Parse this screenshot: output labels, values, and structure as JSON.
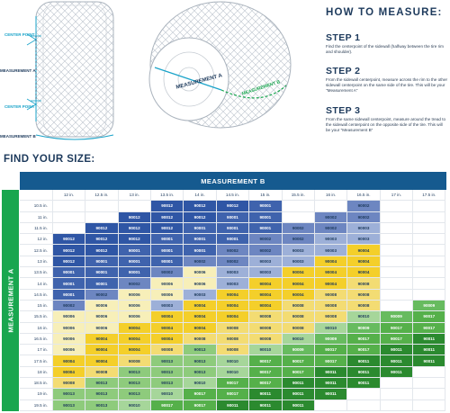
{
  "illustration": {
    "labels": {
      "center_point_top": "CENTER POINT",
      "measurement_a": "MEASUREMENT A",
      "center_point_bottom": "CENTER POINT",
      "measurement_b": "MEASUREMENT B",
      "measurement_a_3d": "MEASUREMENT A",
      "measurement_b_3d": "MEASUREMENT B"
    }
  },
  "how_to": {
    "title": "HOW TO MEASURE:",
    "steps": [
      {
        "title": "STEP 1",
        "text": "Find the centerpoint of the sidewall (halfway between the tire rim and shoulder)."
      },
      {
        "title": "STEP 2",
        "text": "From the sidewall centerpoint, measure across the rim to the other sidewall centerpoint on the same side of the tire. This will be your \"Measurement A\""
      },
      {
        "title": "STEP 3",
        "text": "From the same sidewall centerpoint, measure around the tread to the sidewall centerpoint on the opposite side of the tire. This will be your \"Measurement B\""
      }
    ]
  },
  "find_title": "FIND YOUR SIZE:",
  "table": {
    "measurement_b_label": "MEASUREMENT B",
    "measurement_a_label": "MEASUREMENT A",
    "columns": [
      "12 in.",
      "12.5 in.",
      "13 in.",
      "13.5 in.",
      "14 in.",
      "14.5 in.",
      "15 in.",
      "15.5 in.",
      "16 in.",
      "16.5 in.",
      "17 in.",
      "17.5 in."
    ],
    "rows": [
      {
        "label": "10.5 in.",
        "cells": [
          "",
          "",
          "",
          "90012",
          "90012",
          "90012",
          "90001",
          "",
          "",
          "90002",
          "",
          ""
        ]
      },
      {
        "label": "11 in.",
        "cells": [
          "",
          "",
          "90012",
          "90012",
          "90012",
          "90001",
          "90001",
          "",
          "90002",
          "90002",
          "",
          ""
        ]
      },
      {
        "label": "11.5 in.",
        "cells": [
          "",
          "90012",
          "90012",
          "90012",
          "90001",
          "90001",
          "90001",
          "90002",
          "90002",
          "90003",
          "",
          ""
        ]
      },
      {
        "label": "12 in.",
        "cells": [
          "90012",
          "90012",
          "90012",
          "90001",
          "90001",
          "90001",
          "90002",
          "90002",
          "90003",
          "90003",
          "",
          ""
        ]
      },
      {
        "label": "12.5 in.",
        "cells": [
          "90012",
          "90012",
          "90001",
          "90001",
          "90001",
          "90002",
          "90002",
          "90003",
          "90003",
          "90004",
          "",
          ""
        ]
      },
      {
        "label": "13 in.",
        "cells": [
          "90012",
          "90001",
          "90001",
          "90001",
          "90002",
          "90002",
          "90003",
          "90003",
          "90004",
          "90004",
          "",
          ""
        ]
      },
      {
        "label": "13.5 in.",
        "cells": [
          "90001",
          "90001",
          "90001",
          "90002",
          "90006",
          "90003",
          "90003",
          "90004",
          "90004",
          "90004",
          "",
          ""
        ]
      },
      {
        "label": "14 in.",
        "cells": [
          "90001",
          "90001",
          "90002",
          "90006",
          "90006",
          "90003",
          "90004",
          "90004",
          "90004",
          "90008",
          "",
          ""
        ]
      },
      {
        "label": "14.5 in.",
        "cells": [
          "90001",
          "90002",
          "90006",
          "90006",
          "90003",
          "90004",
          "90004",
          "90004",
          "90008",
          "90008",
          "",
          ""
        ]
      },
      {
        "label": "15 in.",
        "cells": [
          "90002",
          "90006",
          "90006",
          "90003",
          "90004",
          "90004",
          "90004",
          "90008",
          "90008",
          "90008",
          "",
          "90009"
        ]
      },
      {
        "label": "15.5 in.",
        "cells": [
          "90006",
          "90006",
          "90006",
          "90004",
          "90004",
          "90004",
          "90008",
          "90008",
          "90008",
          "90010",
          "90009",
          "90017"
        ]
      },
      {
        "label": "16 in.",
        "cells": [
          "90006",
          "90006",
          "90004",
          "90004",
          "90004",
          "90008",
          "90008",
          "90008",
          "90010",
          "90009",
          "90017",
          "90017"
        ]
      },
      {
        "label": "16.5 in.",
        "cells": [
          "90006",
          "90004",
          "90004",
          "90004",
          "90008",
          "90008",
          "90008",
          "90010",
          "90009",
          "90017",
          "90017",
          "90011"
        ]
      },
      {
        "label": "17 in.",
        "cells": [
          "90006",
          "90004",
          "90004",
          "90008",
          "90013",
          "90008",
          "90010",
          "90009",
          "90017",
          "90017",
          "90011",
          "90011"
        ]
      },
      {
        "label": "17.5 in.",
        "cells": [
          "90004",
          "90004",
          "90008",
          "90013",
          "90013",
          "90010",
          "90017",
          "90017",
          "90017",
          "90011",
          "90011",
          "90011"
        ]
      },
      {
        "label": "18 in.",
        "cells": [
          "90004",
          "90008",
          "90013",
          "90013",
          "90013",
          "90010",
          "90017",
          "90017",
          "90011",
          "90011",
          "90011",
          ""
        ]
      },
      {
        "label": "18.5 in.",
        "cells": [
          "90008",
          "90013",
          "90013",
          "90013",
          "90010",
          "90017",
          "90017",
          "90011",
          "90011",
          "90011",
          "",
          ""
        ]
      },
      {
        "label": "19 in.",
        "cells": [
          "90013",
          "90013",
          "90013",
          "90010",
          "90017",
          "90017",
          "90011",
          "90011",
          "90011",
          "",
          "",
          ""
        ]
      },
      {
        "label": "19.5 in.",
        "cells": [
          "90013",
          "90013",
          "90010",
          "90017",
          "90017",
          "90011",
          "90011",
          "90011",
          "",
          "",
          "",
          ""
        ]
      }
    ],
    "color_map": {
      "90012": "#2f56a5",
      "90001": "#3f63ad",
      "90002": "#6d86c1",
      "90003": "#9db0d8",
      "90006": "#f7efb9",
      "90004": "#f4cf2a",
      "90008": "#f3dc73",
      "90010": "#a6d69a",
      "90009": "#67bb5f",
      "90013": "#8ecb7c",
      "90017": "#55b04a",
      "90011": "#2b8a2f"
    },
    "light_text_codes": [
      "90012",
      "90001",
      "90017",
      "90011",
      "90009"
    ]
  }
}
